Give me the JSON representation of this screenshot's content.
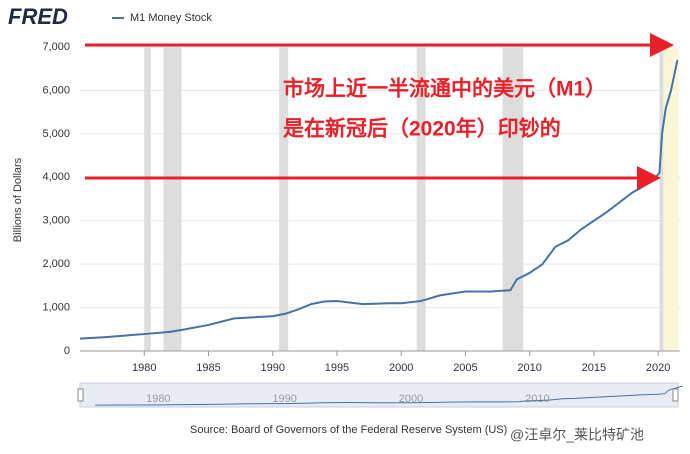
{
  "logo": "FRED",
  "chart_data": {
    "type": "line",
    "title": "M1 Money Stock",
    "y_label": "Billions of Dollars",
    "source": "Source: Board of Governors of the Federal Reserve System (US)",
    "annotations": [
      "市场上近一半流通中的美元（M1）",
      "是在新冠后（2020年）印钞的"
    ],
    "watermark": "@汪卓尔_莱比特矿池",
    "x": [
      1975,
      1977,
      1980,
      1982,
      1983,
      1985,
      1987,
      1989,
      1990,
      1991,
      1992,
      1993,
      1994,
      1995,
      1997,
      1999,
      2000,
      2001.5,
      2002,
      2003,
      2005,
      2007,
      2008.5,
      2009,
      2010,
      2011,
      2012,
      2013,
      2014,
      2016,
      2018,
      2019.5,
      2020.1,
      2020.3,
      2020.6,
      2021,
      2021.5
    ],
    "series": [
      {
        "name": "M1 Money Stock",
        "color": "#4572a7",
        "values": [
          285,
          320,
          390,
          440,
          490,
          600,
          750,
          785,
          800,
          860,
          960,
          1080,
          1140,
          1150,
          1080,
          1100,
          1100,
          1150,
          1190,
          1280,
          1370,
          1370,
          1400,
          1650,
          1800,
          2000,
          2400,
          2550,
          2800,
          3200,
          3650,
          3900,
          4100,
          5000,
          5600,
          6000,
          6700
        ]
      }
    ],
    "recessions": [
      [
        1980.0,
        1980.5
      ],
      [
        1981.5,
        1982.9
      ],
      [
        1990.5,
        1991.2
      ],
      [
        2001.2,
        2001.9
      ],
      [
        2007.9,
        2009.5
      ],
      [
        2020.1,
        2020.4
      ]
    ],
    "highlight": [
      2020.2,
      2021.6
    ],
    "xlim": [
      1975,
      2021.7
    ],
    "xticks": [
      1980,
      1985,
      1990,
      1995,
      2000,
      2005,
      2010,
      2015,
      2020
    ],
    "ylim": [
      0,
      7000
    ],
    "yticks": [
      0,
      {
        "value": 1000,
        "label": "1,000"
      },
      {
        "value": 2000,
        "label": "2,000"
      },
      {
        "value": 3000,
        "label": "3,000"
      },
      {
        "value": 4000,
        "label": "4,000"
      },
      {
        "value": 5000,
        "label": "5,000"
      },
      {
        "value": 6000,
        "label": "6,000"
      },
      {
        "value": 7000,
        "label": "7,000"
      }
    ],
    "grid": true,
    "navigator": {
      "xlim": [
        1973.8,
        2020.5
      ],
      "xticks": [
        1980,
        1990,
        2000,
        2010
      ]
    }
  }
}
